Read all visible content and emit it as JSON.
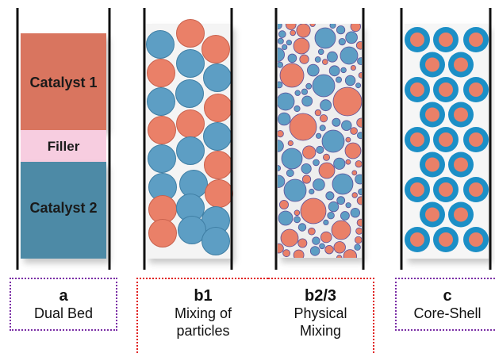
{
  "colors": {
    "catalyst1": "#d9745f",
    "filler": "#f7cde0",
    "catalyst2": "#4e8aa6",
    "particle_red": "#ea8068",
    "particle_blue": "#5d9ec4",
    "core_shell": "#1c8fc6",
    "wall": "#111111",
    "box_purple": "#7b2fa6",
    "box_red": "#e02020"
  },
  "dual_bed": {
    "catalyst1_label": "Catalyst 1",
    "filler_label": "Filler",
    "catalyst2_label": "Catalyst 2"
  },
  "labels": [
    {
      "id": "a",
      "letter": "a",
      "desc_lines": [
        "Dual Bed"
      ]
    },
    {
      "id": "b1",
      "letter": "b1",
      "desc_lines": [
        "Mixing of",
        "particles"
      ]
    },
    {
      "id": "b2",
      "letter": "b2/3",
      "desc_lines": [
        "Physical",
        "Mixing"
      ]
    },
    {
      "id": "c",
      "letter": "c",
      "desc_lines": [
        "Core-Shell"
      ]
    }
  ]
}
